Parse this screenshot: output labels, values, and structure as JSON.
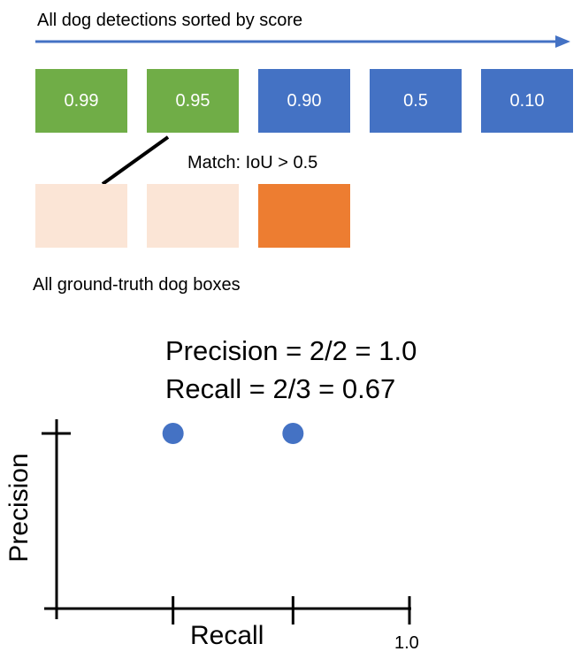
{
  "header": {
    "title": "All dog detections sorted by score"
  },
  "detections": [
    {
      "score": "0.99",
      "color": "#70AD47"
    },
    {
      "score": "0.95",
      "color": "#70AD47"
    },
    {
      "score": "0.90",
      "color": "#4472C4"
    },
    {
      "score": "0.5",
      "color": "#4472C4"
    },
    {
      "score": "0.10",
      "color": "#4472C4"
    }
  ],
  "match": {
    "label": "Match: IoU > 0.5"
  },
  "ground_truth": {
    "title": "All ground-truth dog boxes",
    "boxes": [
      {
        "color": "#FBE5D6"
      },
      {
        "color": "#FBE5D6"
      },
      {
        "color": "#ED7D31"
      }
    ]
  },
  "metrics": {
    "precision": "Precision = 2/2 = 1.0",
    "recall": "Recall = 2/3 = 0.67"
  },
  "chart_data": {
    "type": "scatter",
    "xlabel": "Recall",
    "ylabel": "Precision",
    "xlim": [
      0,
      1.0
    ],
    "ylim": [
      0,
      1.0
    ],
    "x_tick_labels": [
      "",
      "",
      "1.0"
    ],
    "series": [
      {
        "x": [
          0.33,
          0.67
        ],
        "y": [
          1.0,
          1.0
        ],
        "color": "#4472C4"
      }
    ]
  },
  "colors": {
    "arrow": "#4472C4",
    "connector": "#000000"
  }
}
